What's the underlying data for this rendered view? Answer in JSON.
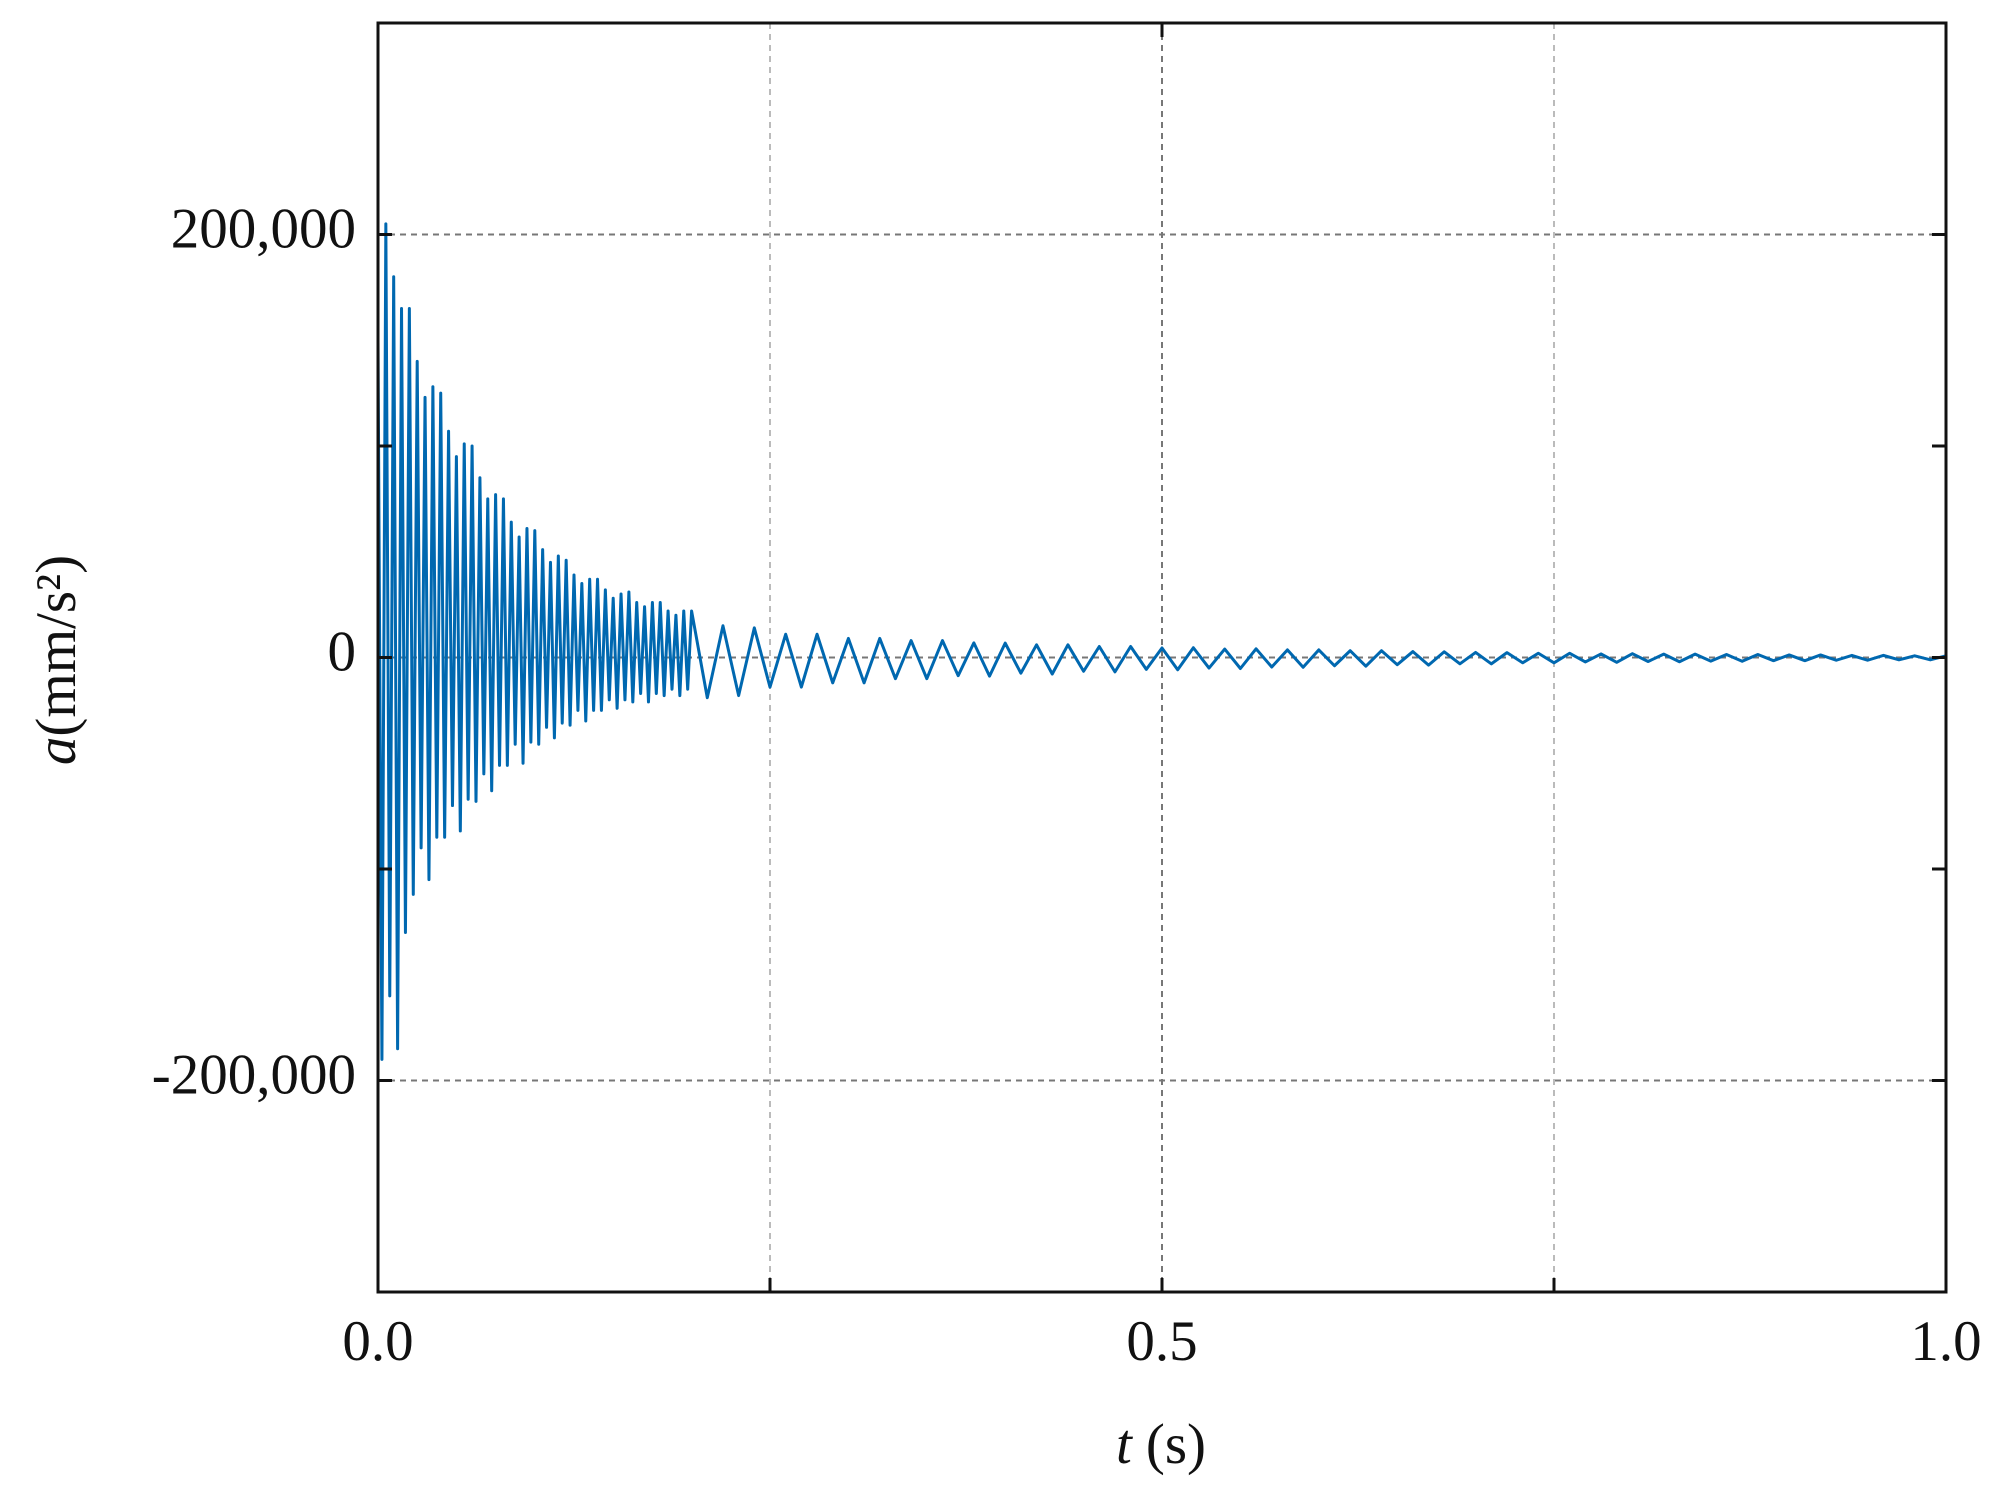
{
  "chart_data": {
    "type": "line",
    "xlabel": {
      "symbol": "t",
      "unit": "(s)"
    },
    "ylabel": {
      "symbol": "a",
      "unit": "(mm/s²)"
    },
    "color": "#0068b0",
    "grid": true,
    "xlim": [
      0,
      1
    ],
    "ylim": [
      -300000,
      300000
    ],
    "xticks": [
      {
        "value": 0,
        "label": "0.0"
      },
      {
        "value": 0.5,
        "label": "0.5"
      },
      {
        "value": 1,
        "label": "1.0"
      }
    ],
    "x_minor_ticks": [
      0.25,
      0.75
    ],
    "yticks": [
      {
        "value": -200000,
        "label": "-200,000"
      },
      0,
      {
        "value": 200000,
        "label": "200,000"
      }
    ],
    "y_minor_ticks": [
      -100000,
      100000
    ],
    "x": [
      0,
      0.0025,
      0.005,
      0.0075,
      0.01,
      0.0125,
      0.015,
      0.0175,
      0.02,
      0.0225,
      0.025,
      0.0275,
      0.03,
      0.0325,
      0.035,
      0.0375,
      0.04,
      0.0425,
      0.045,
      0.0475,
      0.05,
      0.0525,
      0.055,
      0.0575,
      0.06,
      0.0625,
      0.065,
      0.0675,
      0.07,
      0.0725,
      0.075,
      0.0775,
      0.08,
      0.0825,
      0.085,
      0.0875,
      0.09,
      0.0925,
      0.095,
      0.0975,
      0.1,
      0.1025,
      0.105,
      0.1075,
      0.11,
      0.1125,
      0.115,
      0.1175,
      0.12,
      0.1225,
      0.125,
      0.1275,
      0.13,
      0.1325,
      0.135,
      0.1375,
      0.14,
      0.1425,
      0.145,
      0.1475,
      0.15,
      0.1525,
      0.155,
      0.1575,
      0.16,
      0.1625,
      0.165,
      0.1675,
      0.17,
      0.1725,
      0.175,
      0.1775,
      0.18,
      0.1825,
      0.185,
      0.1875,
      0.19,
      0.1925,
      0.195,
      0.1975,
      0.2,
      0.21,
      0.22,
      0.23,
      0.24,
      0.25,
      0.26,
      0.27,
      0.28,
      0.29,
      0.3,
      0.31,
      0.32,
      0.33,
      0.34,
      0.35,
      0.36,
      0.37,
      0.38,
      0.39,
      0.4,
      0.41,
      0.42,
      0.43,
      0.44,
      0.45,
      0.46,
      0.47,
      0.48,
      0.49,
      0.5,
      0.51,
      0.52,
      0.53,
      0.54,
      0.55,
      0.56,
      0.57,
      0.58,
      0.59,
      0.6,
      0.61,
      0.62,
      0.63,
      0.64,
      0.65,
      0.66,
      0.67,
      0.68,
      0.69,
      0.7,
      0.71,
      0.72,
      0.73,
      0.74,
      0.75,
      0.76,
      0.77,
      0.78,
      0.79,
      0.8,
      0.81,
      0.82,
      0.83,
      0.84,
      0.85,
      0.86,
      0.87,
      0.88,
      0.89,
      0.9,
      0.91,
      0.92,
      0.93,
      0.94,
      0.95,
      0.96,
      0.97,
      0.98,
      0.99,
      1
    ],
    "values": [
      150000,
      -190000,
      205000,
      -160000,
      180000,
      -185000,
      165000,
      -130000,
      165000,
      -112000,
      140000,
      -90000,
      123000,
      -105000,
      128000,
      -85000,
      125000,
      -85000,
      107000,
      -70000,
      95000,
      -82000,
      101000,
      -67000,
      100000,
      -68000,
      85000,
      -55000,
      75000,
      -63000,
      77000,
      -51000,
      75000,
      -51000,
      64000,
      -41000,
      57000,
      -50000,
      61000,
      -40000,
      60000,
      -41000,
      51000,
      -33000,
      45000,
      -38000,
      48000,
      -31000,
      46000,
      -32000,
      39000,
      -25000,
      35000,
      -30000,
      37000,
      -25000,
      37000,
      -25000,
      32000,
      -20000,
      28000,
      -24000,
      30000,
      -20000,
      31000,
      -21000,
      26000,
      -17000,
      24000,
      -21000,
      26000,
      -17000,
      26000,
      -18000,
      22000,
      -15000,
      20000,
      -18000,
      22000,
      -15000,
      22000,
      -19000,
      15000,
      -18000,
      14000,
      -14000,
      11000,
      -14000,
      11000,
      -12000,
      9000,
      -12000,
      9000,
      -10000,
      8000,
      -10000,
      8000,
      -8600,
      6900,
      -8800,
      6800,
      -7400,
      6000,
      -7800,
      6000,
      -6500,
      5200,
      -6800,
      5200,
      -5600,
      4500,
      -5800,
      4600,
      -5000,
      4000,
      -5200,
      4100,
      -4500,
      3600,
      -4600,
      3600,
      -3900,
      3200,
      -4100,
      3200,
      -3400,
      2800,
      -3600,
      2700,
      -3000,
      2400,
      -3000,
      2300,
      -2500,
      2000,
      -2500,
      2000,
      -2100,
      1700,
      -2300,
      1800,
      -1900,
      1600,
      -2000,
      1600,
      -1700,
      1400,
      -1800,
      1400,
      -1500,
      1200,
      -1500,
      1200,
      -1300,
      1000,
      -1300,
      1000,
      -1100,
      800,
      -1100,
      800
    ]
  }
}
